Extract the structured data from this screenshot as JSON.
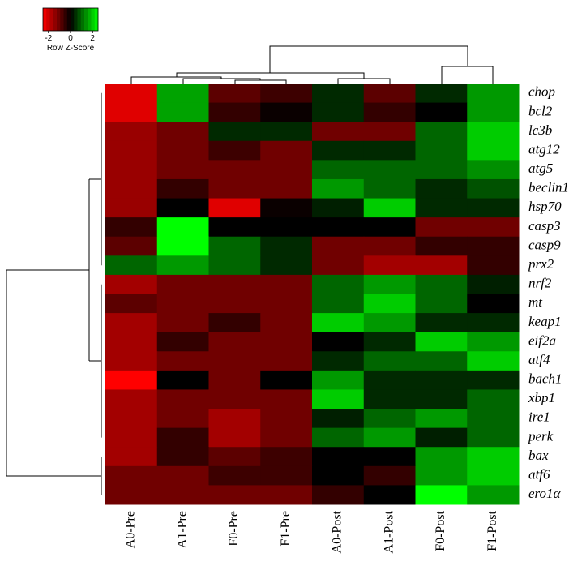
{
  "chart_data": {
    "type": "heatmap",
    "x": [
      "A0-Pre",
      "A1-Pre",
      "F0-Pre",
      "F1-Pre",
      "A0-Post",
      "A1-Post",
      "F0-Post",
      "F1-Post"
    ],
    "y": [
      "chop",
      "bcl2",
      "lc3b",
      "atg12",
      "atg5",
      "beclin1",
      "hsp70",
      "casp3",
      "casp9",
      "prx2",
      "nrf2",
      "mt",
      "keap1",
      "eif2a",
      "atf4",
      "bach1",
      "xbp1",
      "ire1",
      "perk",
      "bax",
      "atf6",
      "ero1α"
    ],
    "values": [
      [
        -2.2,
        1.6,
        -0.9,
        -0.6,
        0.4,
        -0.9,
        0.4,
        1.5
      ],
      [
        -2.2,
        1.6,
        -0.5,
        -0.1,
        0.4,
        -0.5,
        0,
        1.5
      ],
      [
        -1.5,
        -1.1,
        0.4,
        0.4,
        -1.1,
        -1.1,
        1.0,
        2.0
      ],
      [
        -1.5,
        -1.1,
        -0.6,
        -1.1,
        0.4,
        0.4,
        1.0,
        2.0
      ],
      [
        -1.5,
        -1.1,
        -1.1,
        -1.1,
        1.0,
        1.0,
        1.0,
        1.4
      ],
      [
        -1.5,
        -0.5,
        -1.1,
        -1.1,
        1.5,
        1.0,
        0.4,
        0.8
      ],
      [
        -1.5,
        0,
        -2.2,
        -0.1,
        0.3,
        2.0,
        0.4,
        0.4
      ],
      [
        -0.5,
        2.6,
        0,
        0,
        0,
        0,
        -1.1,
        -1.1
      ],
      [
        -0.9,
        2.6,
        1.0,
        0.4,
        -1.1,
        -1.1,
        -0.5,
        -0.5
      ],
      [
        1.0,
        1.5,
        1.0,
        0.4,
        -1.1,
        -1.6,
        -1.6,
        -0.5
      ],
      [
        -1.6,
        -1.1,
        -1.1,
        -1.1,
        1.0,
        1.5,
        1.0,
        0.3
      ],
      [
        -0.9,
        -1.1,
        -1.1,
        -1.1,
        1.0,
        2.0,
        1.0,
        0
      ],
      [
        -1.6,
        -1.1,
        -0.5,
        -1.1,
        2.0,
        1.5,
        0.4,
        0.4
      ],
      [
        -1.6,
        -0.5,
        -1.1,
        -1.1,
        0,
        0.4,
        2.0,
        1.5
      ],
      [
        -1.6,
        -1.1,
        -1.1,
        -1.1,
        0.4,
        1.0,
        1.0,
        2.0
      ],
      [
        -2.6,
        0,
        -1.1,
        0,
        1.5,
        0.4,
        0.4,
        0.4
      ],
      [
        -1.6,
        -1.1,
        -1.1,
        -1.1,
        2.0,
        0.4,
        0.4,
        1.0
      ],
      [
        -1.6,
        -1.1,
        -1.6,
        -1.1,
        0.3,
        1.0,
        1.5,
        1.0
      ],
      [
        -1.6,
        -0.5,
        -1.6,
        -1.1,
        1.0,
        1.5,
        0.3,
        1.0
      ],
      [
        -1.6,
        -0.5,
        -0.9,
        -0.6,
        0,
        0,
        1.5,
        2.0
      ],
      [
        -1.1,
        -1.1,
        -0.6,
        -0.6,
        0,
        -0.5,
        1.5,
        2.0
      ],
      [
        -1.1,
        -1.1,
        -1.1,
        -1.1,
        -0.5,
        0,
        2.6,
        1.5
      ]
    ],
    "colors": {
      "low": "#ff0000",
      "mid": "#000000",
      "high": "#00ff00"
    },
    "zlim": [
      -2.5,
      2.5
    ],
    "color_key": {
      "label": "Row Z-Score",
      "xlim": [
        -2.5,
        2.5
      ],
      "xticks": [
        -2,
        0,
        2
      ]
    }
  }
}
